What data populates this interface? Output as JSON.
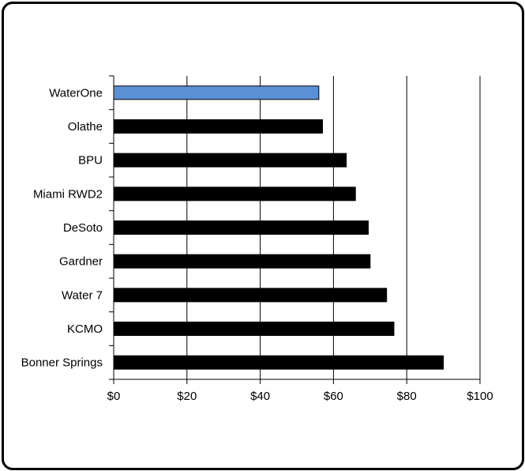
{
  "chart_data": {
    "type": "bar",
    "orientation": "horizontal",
    "title": "",
    "xlabel": "",
    "ylabel": "",
    "categories": [
      "WaterOne",
      "Olathe",
      "BPU",
      "Miami RWD2",
      "DeSoto",
      "Gardner",
      "Water 7",
      "KCMO",
      "Bonner Springs"
    ],
    "values": [
      56,
      57,
      63.5,
      66,
      69.5,
      70,
      74.5,
      76.5,
      90
    ],
    "xlim": [
      0,
      100
    ],
    "x_ticks": [
      0,
      20,
      40,
      60,
      80,
      100
    ],
    "x_tick_labels": [
      "$0",
      "$20",
      "$40",
      "$60",
      "$80",
      "$100"
    ],
    "grid": "vertical",
    "legend": "none",
    "colors": {
      "highlight": "#5b8fd6",
      "highlight_category": "WaterOne",
      "default": "#000000",
      "gridline": "#000000",
      "frame": "#000000"
    }
  }
}
